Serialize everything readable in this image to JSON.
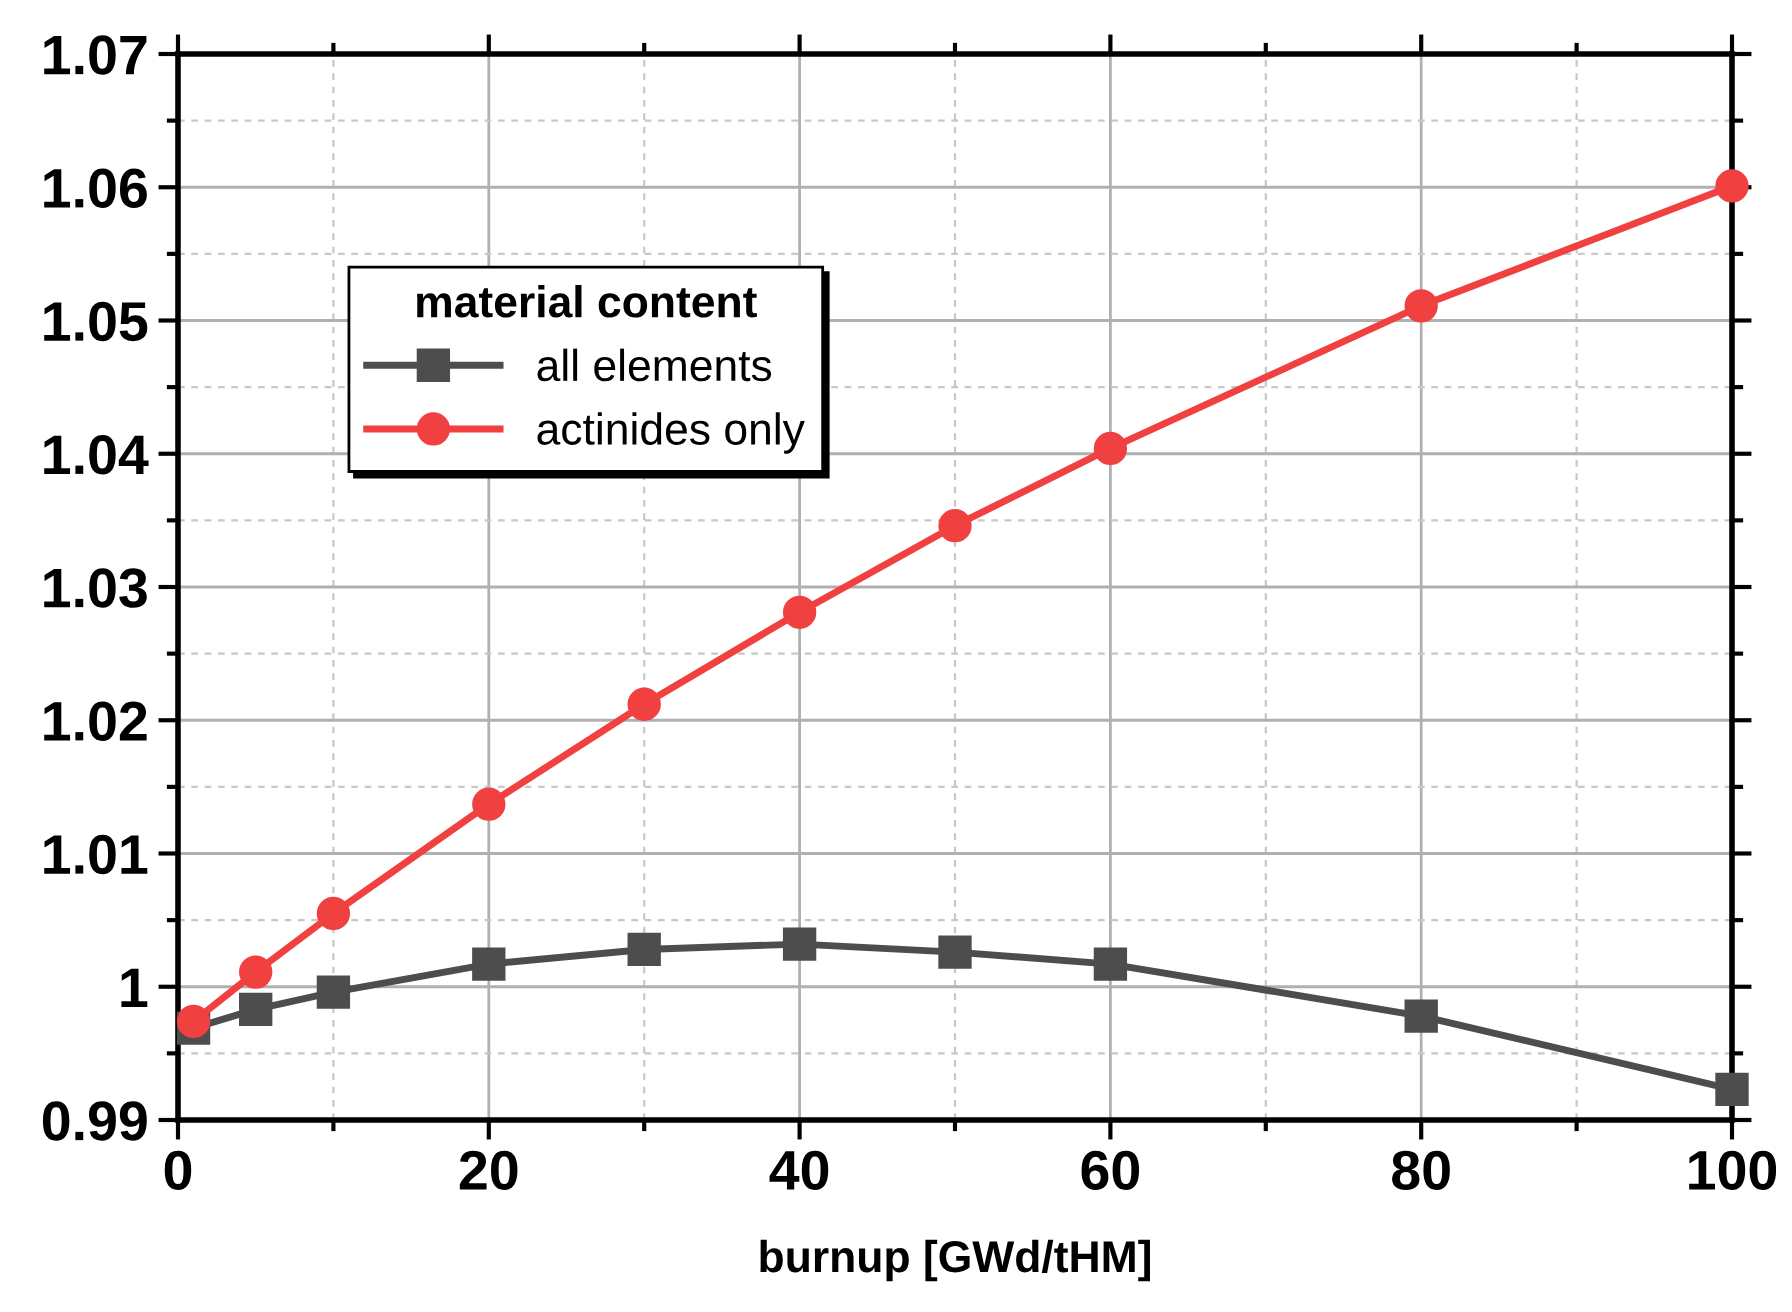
{
  "chart_data": {
    "type": "line",
    "xlabel": "burnup [GWd/tHM]",
    "x": [
      1,
      5,
      10,
      20,
      30,
      40,
      50,
      60,
      80,
      100
    ],
    "series": [
      {
        "name": "all elements",
        "color": "#4d4d4d",
        "marker": "square",
        "values": [
          0.9969,
          0.9983,
          0.9996,
          1.0017,
          1.0028,
          1.0032,
          1.0026,
          1.0017,
          0.9978,
          0.9923
        ]
      },
      {
        "name": "actinides only",
        "color": "#f04040",
        "marker": "circle",
        "values": [
          0.9974,
          1.0011,
          1.0055,
          1.0137,
          1.0212,
          1.0281,
          1.0346,
          1.0404,
          1.0511,
          1.0601
        ]
      }
    ],
    "legend_title": "material content",
    "legend": "upper left",
    "xlim": [
      0,
      100
    ],
    "xticks": [
      0,
      20,
      40,
      60,
      80,
      100
    ],
    "ylim": [
      0.99,
      1.07
    ],
    "yticks": [
      {
        "value": 0.99,
        "label": "0.99"
      },
      {
        "value": 1.0,
        "label": "1"
      },
      {
        "value": 1.01,
        "label": "1.01"
      },
      {
        "value": 1.02,
        "label": "1.02"
      },
      {
        "value": 1.03,
        "label": "1.03"
      },
      {
        "value": 1.04,
        "label": "1.04"
      },
      {
        "value": 1.05,
        "label": "1.05"
      },
      {
        "value": 1.06,
        "label": "1.06"
      },
      {
        "value": 1.07,
        "label": "1.07"
      }
    ],
    "grid": true,
    "line_style": "solid"
  }
}
